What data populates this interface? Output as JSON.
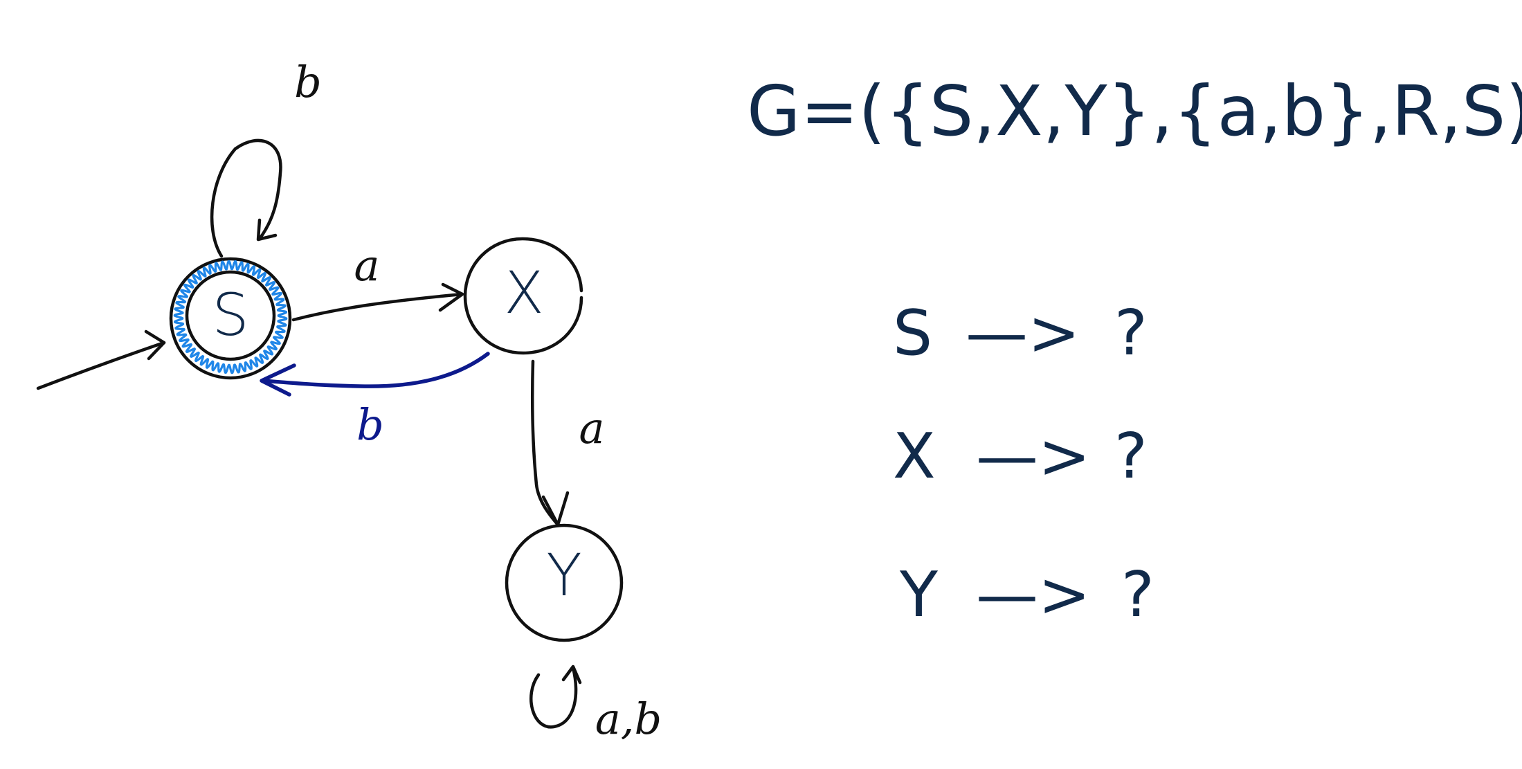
{
  "grammar": {
    "definition": "G=({S,X,Y},{a,b},R,S)",
    "rules": [
      {
        "lhs": "S",
        "arrow": "—>",
        "rhs": "?"
      },
      {
        "lhs": "X",
        "arrow": "—>",
        "rhs": "?"
      },
      {
        "lhs": "Y",
        "arrow": "—>",
        "rhs": "?"
      }
    ]
  },
  "automaton": {
    "states": [
      {
        "id": "S",
        "label": "S",
        "start": true,
        "accepting": true
      },
      {
        "id": "X",
        "label": "X",
        "start": false,
        "accepting": false
      },
      {
        "id": "Y",
        "label": "Y",
        "start": false,
        "accepting": false
      }
    ],
    "transitions": [
      {
        "from": "S",
        "to": "S",
        "label": "b"
      },
      {
        "from": "S",
        "to": "X",
        "label": "a"
      },
      {
        "from": "X",
        "to": "S",
        "label": "b",
        "color": "#0d1a8c"
      },
      {
        "from": "X",
        "to": "Y",
        "label": "a"
      },
      {
        "from": "Y",
        "to": "Y",
        "label": "a,b"
      }
    ]
  },
  "colors": {
    "ink": "#111111",
    "text": "#112a4a",
    "highlight_edge": "#0d1a8c",
    "accept_marker": "#1f86e8"
  }
}
